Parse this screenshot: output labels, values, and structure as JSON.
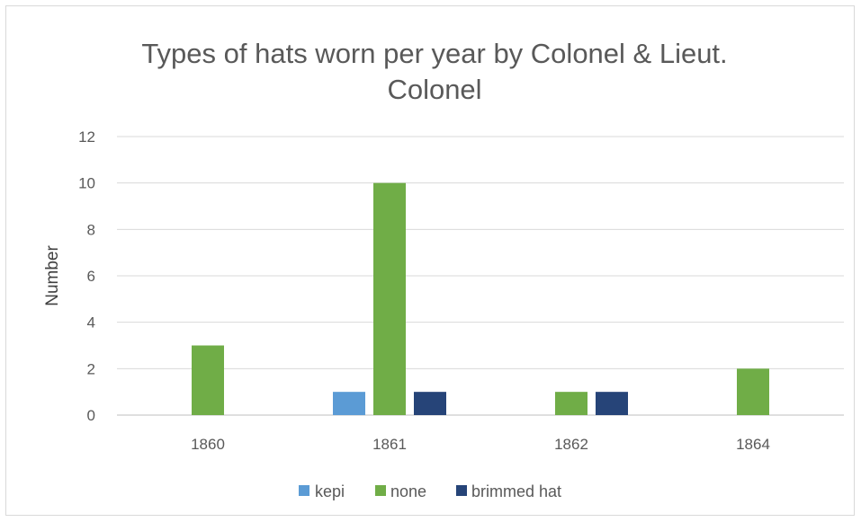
{
  "chart_data": {
    "type": "bar",
    "title_lines": [
      "Types of hats worn per year by Colonel & Lieut.",
      "Colonel"
    ],
    "xlabel": "",
    "ylabel": "Number",
    "categories": [
      "1860",
      "1861",
      "1862",
      "1864"
    ],
    "ylim": [
      0,
      12
    ],
    "yticks": [
      0,
      2,
      4,
      6,
      8,
      10,
      12
    ],
    "grid": true,
    "legend": "bottom",
    "series": [
      {
        "name": "kepi",
        "color": "#5b9bd5",
        "values": [
          0,
          1,
          0,
          0
        ]
      },
      {
        "name": "none",
        "color": "#70ad47",
        "values": [
          3,
          10,
          1,
          2
        ]
      },
      {
        "name": "brimmed hat",
        "color": "#264478",
        "values": [
          0,
          1,
          1,
          0
        ]
      }
    ]
  }
}
